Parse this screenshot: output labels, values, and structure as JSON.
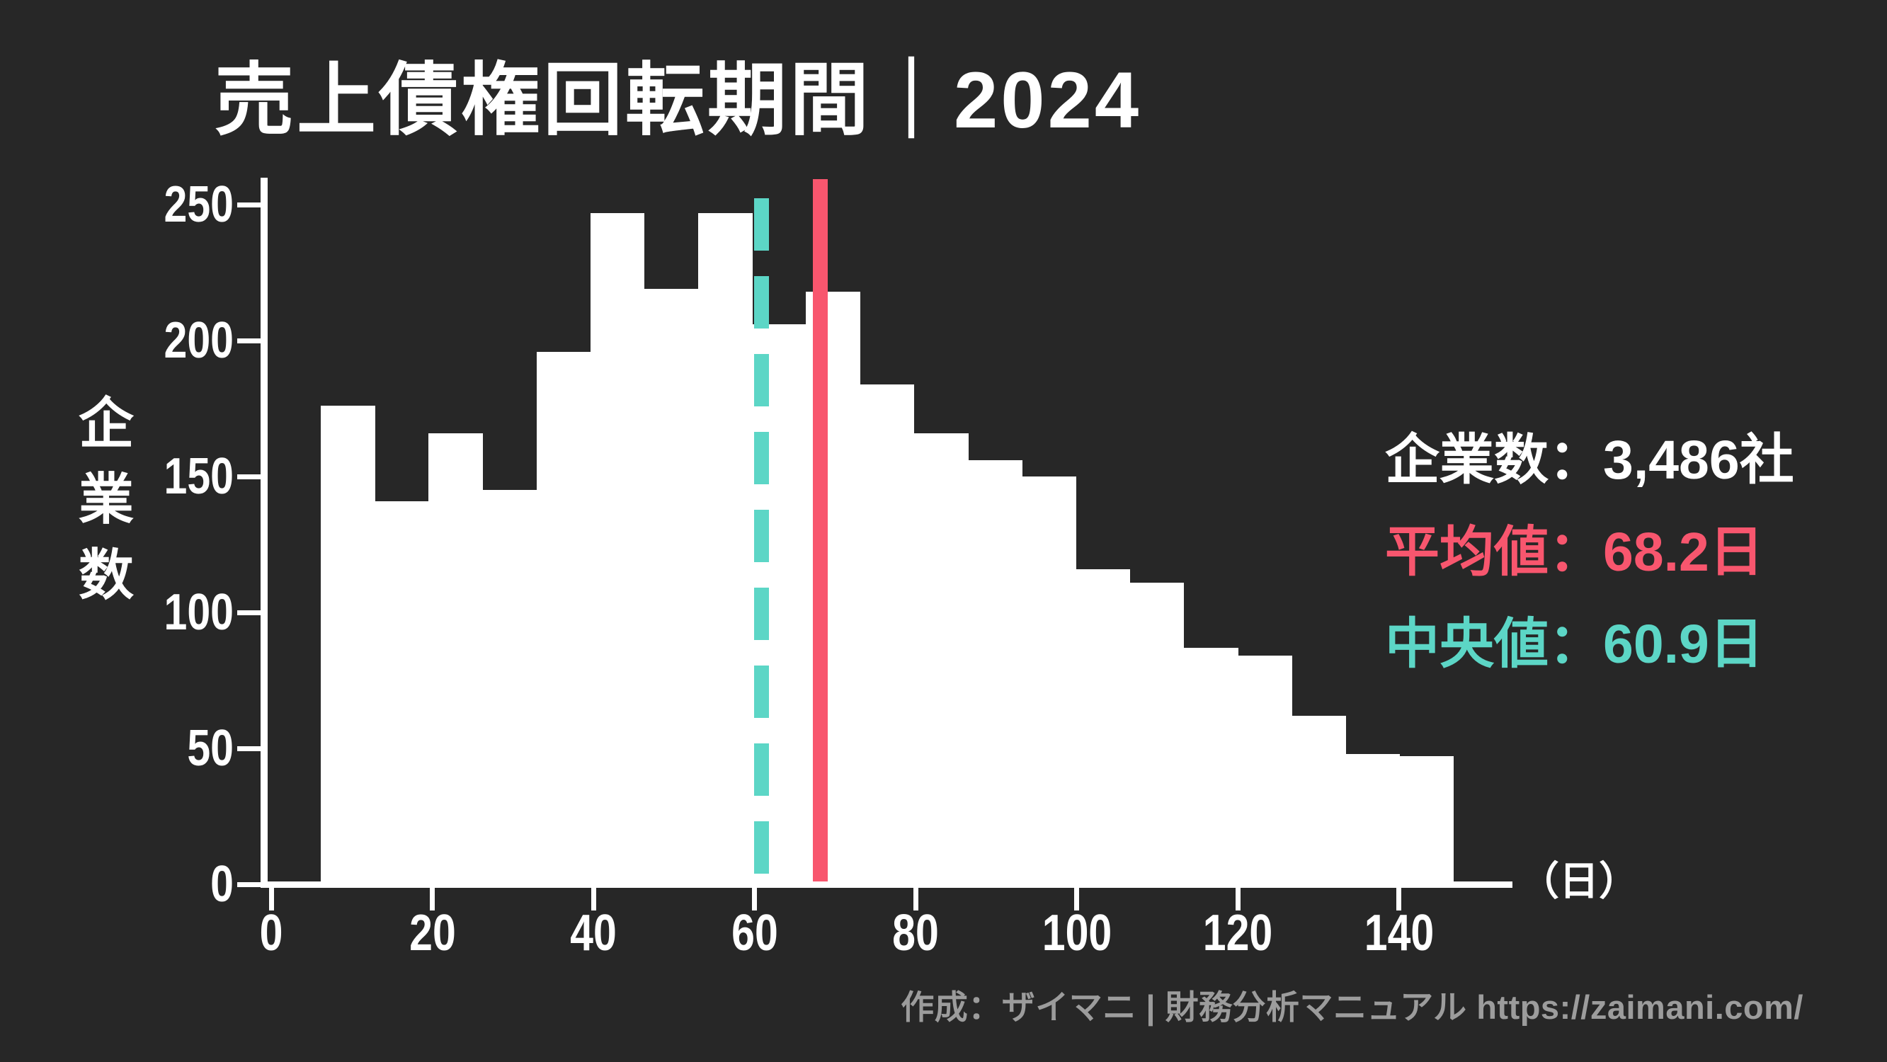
{
  "title": "売上債権回転期間｜2024",
  "y_axis": {
    "label": "企業数"
  },
  "x_axis": {
    "unit_label": "（日）"
  },
  "stats": {
    "rows": [
      {
        "id": "companies",
        "label": "企業数",
        "separator": "：",
        "value": "3,486社"
      },
      {
        "id": "mean",
        "label": "平均値",
        "separator": "：",
        "value": "68.2日"
      },
      {
        "id": "median",
        "label": "中央値",
        "separator": "：",
        "value": "60.9日"
      }
    ]
  },
  "footer": {
    "credit": "作成：ザイマニ | 財務分析マニュアル https://zaimani.com/"
  },
  "colors": {
    "background": "#272727",
    "bar": "#ffffff",
    "mean_line": "#f8566e",
    "median_line": "#5cd6c6",
    "text": "#ffffff",
    "footer_text": "#9c9c9c"
  },
  "chart_data": {
    "type": "bar",
    "title": "売上債権回転期間｜2024",
    "xlabel": "（日）",
    "ylabel": "企業数",
    "x_ticks": [
      0,
      20,
      40,
      60,
      80,
      100,
      120,
      140
    ],
    "y_ticks": [
      0,
      50,
      100,
      150,
      200,
      250
    ],
    "xlim": [
      0,
      154
    ],
    "ylim": [
      0,
      258
    ],
    "grid": false,
    "legend_position": "none",
    "bin_start_day": 6.13,
    "bin_width_days": 6.697,
    "values": [
      175,
      140,
      165,
      144,
      195,
      246,
      218,
      246,
      205,
      217,
      183,
      165,
      155,
      149,
      115,
      110,
      86,
      83,
      61,
      47,
      46
    ],
    "mean_days": 68.2,
    "median_days": 60.9,
    "companies": 3486
  }
}
